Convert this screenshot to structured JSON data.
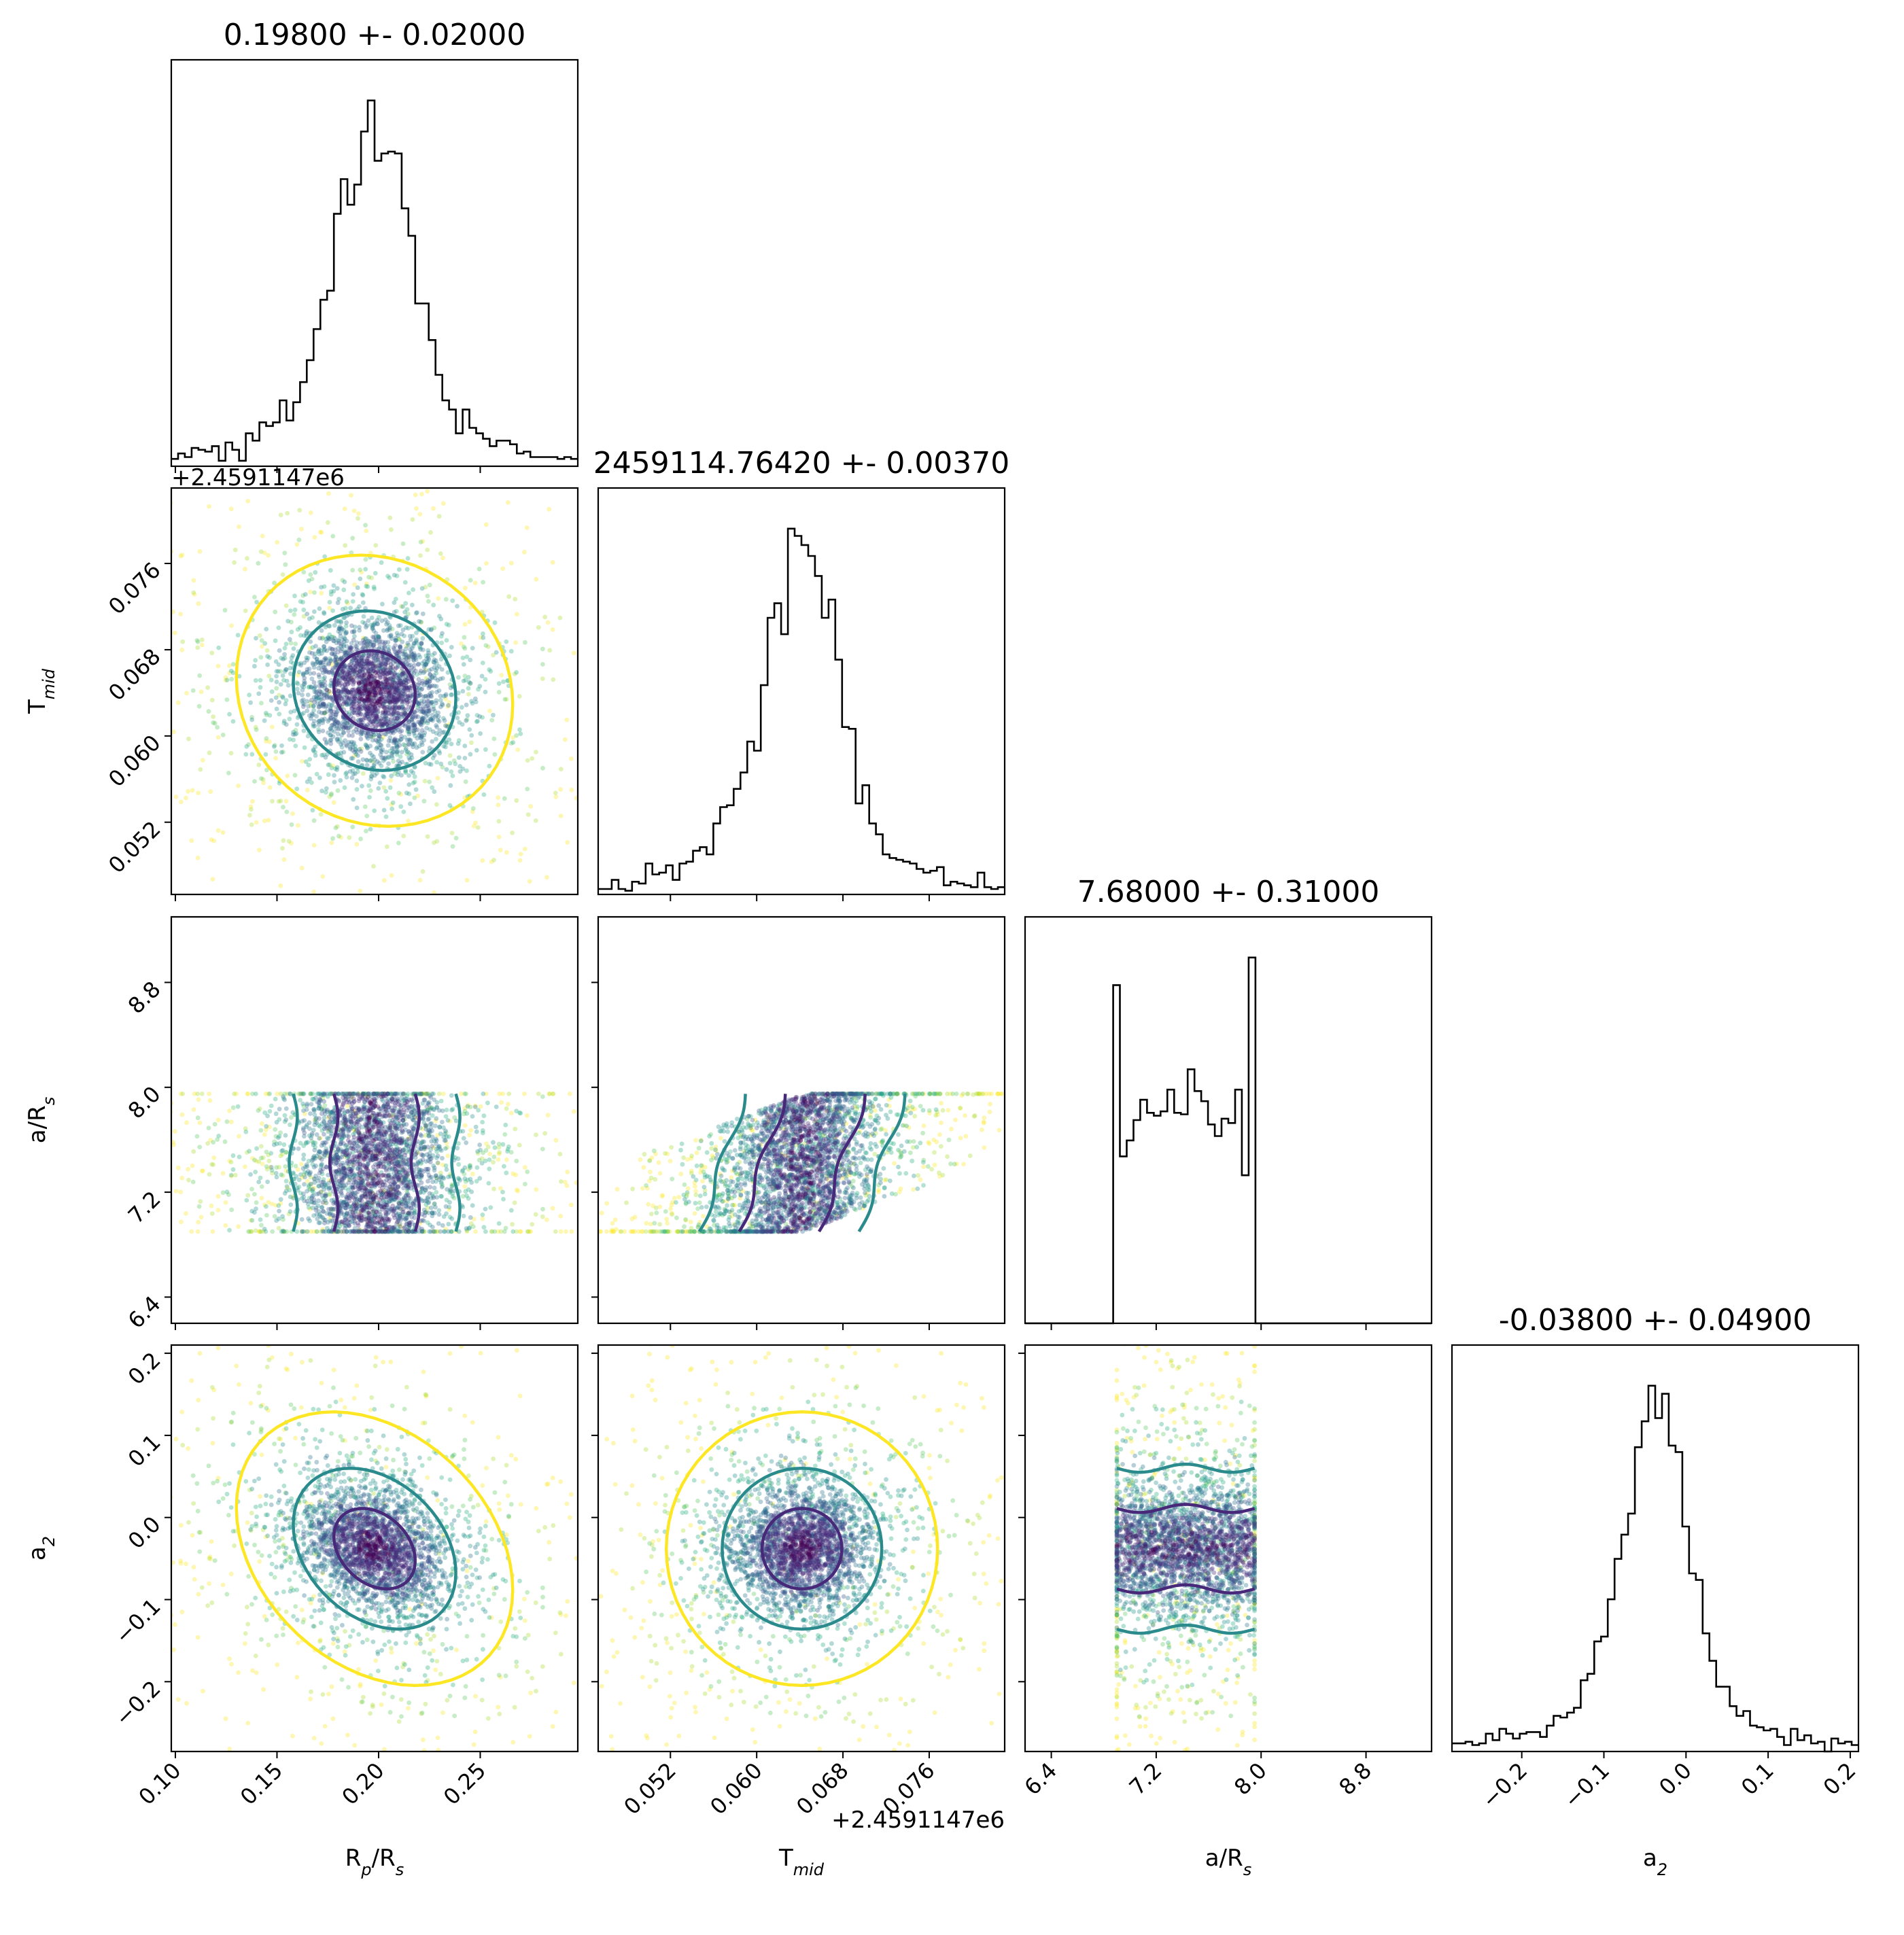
{
  "figure": {
    "type": "corner-plot"
  },
  "params": [
    "R_p/R_s",
    "T_mid",
    "a/R_s",
    "a_2"
  ],
  "labels": {
    "rp": {
      "main": "R",
      "sub1": "p",
      "mid": "/R",
      "sub2": "s"
    },
    "tmid": {
      "main": "T",
      "sub1": "mid",
      "mid": "",
      "sub2": ""
    },
    "ars": {
      "main": "a/R",
      "sub1": "s",
      "mid": "",
      "sub2": ""
    },
    "a2": {
      "main": "a",
      "sub1": "2",
      "mid": "",
      "sub2": ""
    }
  },
  "titles": [
    "0.19800 +- 0.02000",
    "2459114.76420 +- 0.00370",
    "7.68000 +- 0.31000",
    "-0.03800 +- 0.04900"
  ],
  "offset_text": "+2.4591147e6",
  "x_ticks": {
    "rp": [
      "0.10",
      "0.15",
      "0.20",
      "0.25"
    ],
    "tmid": [
      "0.052",
      "0.060",
      "0.068",
      "0.076"
    ],
    "ars": [
      "6.4",
      "7.2",
      "8.0",
      "8.8"
    ],
    "a2": [
      "−0.2",
      "−0.1",
      "0.0",
      "0.1",
      "0.2"
    ]
  },
  "y_ticks": {
    "tmid": [
      "0.052",
      "0.060",
      "0.068",
      "0.076"
    ],
    "ars": [
      "6.4",
      "7.2",
      "8.0",
      "8.8"
    ],
    "a2": [
      "−0.2",
      "−0.1",
      "0.0",
      "0.1",
      "0.2"
    ]
  },
  "colors": {
    "viridis": [
      "#440154",
      "#472a7a",
      "#3b528b",
      "#2c728e",
      "#21918c",
      "#28ae80",
      "#5ec962",
      "#addc30",
      "#fde725"
    ],
    "contour_inner": "#482878",
    "contour_mid": "#2a8a8c",
    "contour_outer": "#fde725",
    "hist": "#000000"
  },
  "chart_data": {
    "type": "scatter",
    "title": "",
    "variables": [
      {
        "name": "R_p/R_s",
        "median": 0.198,
        "sigma": 0.02,
        "range": [
          0.098,
          0.298
        ]
      },
      {
        "name": "T_mid",
        "offset": 2459114.7,
        "median": 0.0642,
        "sigma": 0.0037,
        "range": [
          0.0453,
          0.083
        ]
      },
      {
        "name": "a/R_s",
        "median": 7.68,
        "sigma": 0.31,
        "range": [
          6.2,
          9.3
        ],
        "prior_bounds": [
          6.9,
          7.95
        ]
      },
      {
        "name": "a_2",
        "median": -0.038,
        "sigma": 0.049,
        "range": [
          -0.285,
          0.21
        ]
      }
    ],
    "correlations": {
      "T_mid|a/R_s": 0.85,
      "R_p/R_s|a_2": -0.3,
      "R_p/R_s|T_mid": -0.1
    },
    "histogram_peaks": {
      "R_p/R_s": 0.198,
      "T_mid": 0.0645,
      "a_2": -0.04
    },
    "grid": false
  }
}
